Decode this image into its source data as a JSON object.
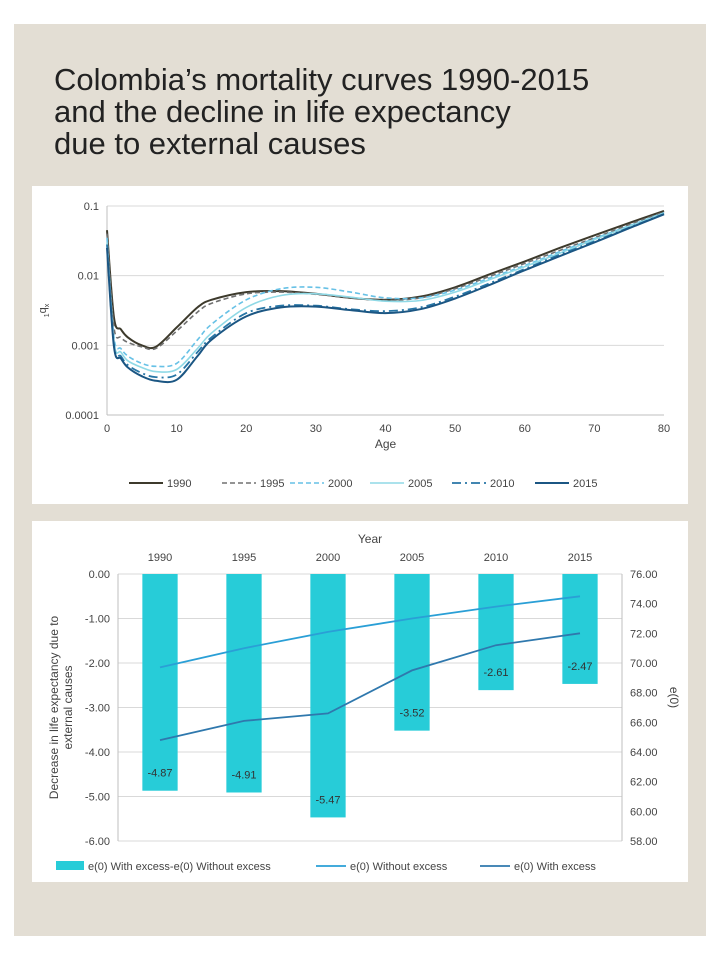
{
  "title_lines": [
    "Colombia’s mortality curves 1990-2015",
    "and the decline in life expectancy",
    "due to external causes"
  ],
  "colors": {
    "1990": "#3d3a2c",
    "1995": "#707070",
    "2000": "#67c1e6",
    "2005": "#8fd9e6",
    "2010": "#2776a6",
    "2015": "#1b5683",
    "bar": "#27ccd8",
    "without_excess": "#2a9fd6",
    "with_excess": "#2f78ad"
  },
  "chart_data": [
    {
      "type": "line",
      "title": "",
      "xlabel": "Age",
      "ylabel": "1qx",
      "ylabel_main": "q",
      "ylabel_sub_pre": "1",
      "ylabel_sub_post": "x",
      "yscale": "log",
      "xlim": [
        0,
        80
      ],
      "ylim": [
        0.0001,
        0.1
      ],
      "x_ticks": [
        "0",
        "10",
        "20",
        "30",
        "40",
        "50",
        "60",
        "70",
        "80"
      ],
      "y_ticks": [
        "0.0001",
        "0.001",
        "0.01",
        "0.1"
      ],
      "legend_position": "bottom",
      "x": [
        0,
        1,
        2,
        3,
        5,
        7,
        10,
        13,
        15,
        20,
        25,
        30,
        35,
        40,
        45,
        50,
        55,
        60,
        65,
        70,
        75,
        80
      ],
      "series": [
        {
          "name": "1990",
          "values": [
            0.045,
            0.0025,
            0.0017,
            0.0013,
            0.001,
            0.00095,
            0.0018,
            0.0035,
            0.0045,
            0.0058,
            0.006,
            0.0055,
            0.0048,
            0.0045,
            0.005,
            0.0068,
            0.0105,
            0.016,
            0.025,
            0.038,
            0.057,
            0.085
          ]
        },
        {
          "name": "1995",
          "values": [
            0.04,
            0.0018,
            0.0013,
            0.0011,
            0.00095,
            0.0009,
            0.0016,
            0.003,
            0.004,
            0.0055,
            0.0058,
            0.0054,
            0.0048,
            0.0044,
            0.0048,
            0.0065,
            0.0098,
            0.015,
            0.023,
            0.035,
            0.054,
            0.082
          ]
        },
        {
          "name": "2000",
          "values": [
            0.035,
            0.0013,
            0.0009,
            0.0007,
            0.00055,
            0.0005,
            0.00055,
            0.0012,
            0.002,
            0.0045,
            0.0065,
            0.0068,
            0.0058,
            0.0048,
            0.0048,
            0.0062,
            0.0093,
            0.014,
            0.022,
            0.034,
            0.052,
            0.08
          ]
        },
        {
          "name": "2005",
          "values": [
            0.03,
            0.0011,
            0.0008,
            0.0006,
            0.00048,
            0.00042,
            0.00045,
            0.0009,
            0.0015,
            0.0035,
            0.0052,
            0.0055,
            0.0049,
            0.0043,
            0.0044,
            0.0058,
            0.0088,
            0.0135,
            0.021,
            0.033,
            0.051,
            0.079
          ]
        },
        {
          "name": "2010",
          "values": [
            0.028,
            0.001,
            0.0007,
            0.00052,
            0.0004,
            0.00035,
            0.00038,
            0.0008,
            0.0013,
            0.0029,
            0.0037,
            0.0037,
            0.0033,
            0.0031,
            0.0035,
            0.005,
            0.0078,
            0.0125,
            0.02,
            0.031,
            0.049,
            0.077
          ]
        },
        {
          "name": "2015",
          "values": [
            0.025,
            0.00095,
            0.00065,
            0.00048,
            0.00036,
            0.00031,
            0.00032,
            0.0007,
            0.0012,
            0.0026,
            0.0035,
            0.0036,
            0.0032,
            0.0029,
            0.0033,
            0.0047,
            0.0074,
            0.012,
            0.019,
            0.03,
            0.048,
            0.076
          ]
        }
      ]
    },
    {
      "type": "bar",
      "title": "",
      "x_axis_title_top": "Year",
      "categories": [
        "1990",
        "1995",
        "2000",
        "2005",
        "2010",
        "2015"
      ],
      "ylabel_left": "Decrease  in life expectancy  due to external causes",
      "ylabel_left_lines": [
        "Decrease  in life expectancy  due to",
        "external causes"
      ],
      "ylabel_right": "e(0)",
      "ylim_left": [
        -6,
        0
      ],
      "ylim_right": [
        58,
        76
      ],
      "y_ticks_left": [
        "0.00",
        "-1.00",
        "-2.00",
        "-3.00",
        "-4.00",
        "-5.00",
        "-6.00"
      ],
      "y_ticks_right": [
        "76.00",
        "74.00",
        "72.00",
        "70.00",
        "68.00",
        "66.00",
        "64.00",
        "62.00",
        "60.00",
        "58.00"
      ],
      "legend_position": "bottom",
      "series": [
        {
          "name": "e(0) With excess-e(0) Without excess",
          "kind": "bar",
          "axis": "left",
          "values": [
            -4.87,
            -4.91,
            -5.47,
            -3.52,
            -2.61,
            -2.47
          ],
          "labels": [
            "-4.87",
            "-4.91",
            "-5.47",
            "-3.52",
            "-2.61",
            "-2.47"
          ]
        },
        {
          "name": "e(0)  Without excess",
          "kind": "line",
          "axis": "right",
          "values": [
            69.7,
            71.0,
            72.1,
            73.0,
            73.8,
            74.5
          ]
        },
        {
          "name": "e(0)  With excess",
          "kind": "line",
          "axis": "right",
          "values": [
            64.8,
            66.1,
            66.6,
            69.5,
            71.2,
            72.0
          ]
        }
      ]
    }
  ]
}
